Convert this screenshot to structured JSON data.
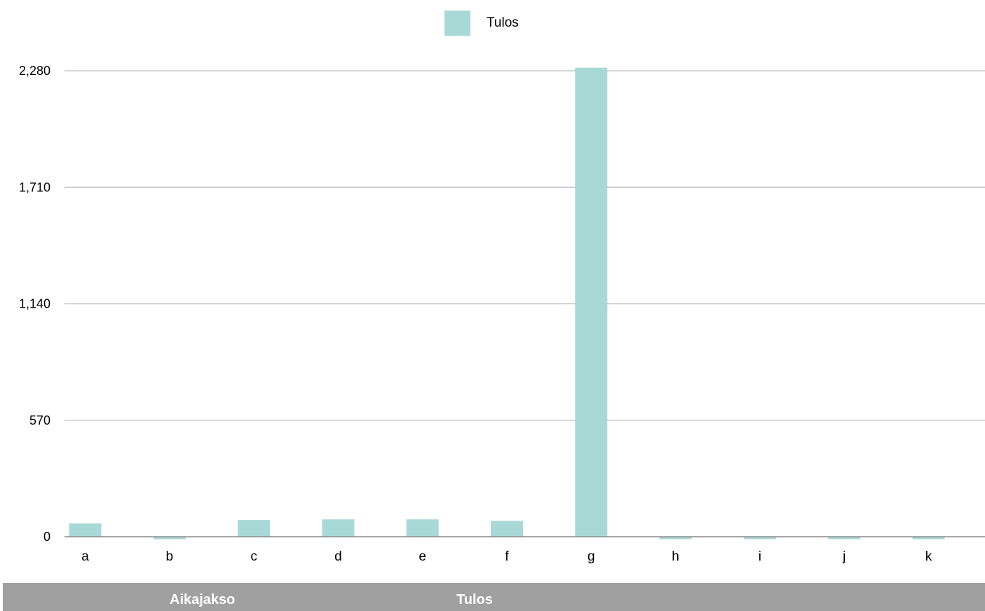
{
  "chart_data": {
    "type": "bar",
    "categories": [
      "a",
      "b",
      "c",
      "d",
      "e",
      "f",
      "g",
      "h",
      "i",
      "j",
      "k"
    ],
    "series": [
      {
        "name": "Tulos",
        "values": [
          65,
          -12,
          82,
          85,
          85,
          78,
          2295,
          -12,
          -12,
          -12,
          -12
        ],
        "color": "#a8d9d7"
      }
    ],
    "yticks": [
      "0",
      "570",
      "1,140",
      "1,710",
      "2,280"
    ],
    "ytick_values": [
      0,
      570,
      1140,
      1710,
      2280
    ],
    "ylim": [
      0,
      2280
    ],
    "grid": true,
    "legend_position": "top-center"
  },
  "table": {
    "headers": [
      "Aikajakso",
      "Tulos"
    ]
  },
  "colors": {
    "bar": "#a8d9d7",
    "grid": "#c8c8c8",
    "axis": "#8a8a8a",
    "table_header_bg": "#a0a0a0"
  }
}
